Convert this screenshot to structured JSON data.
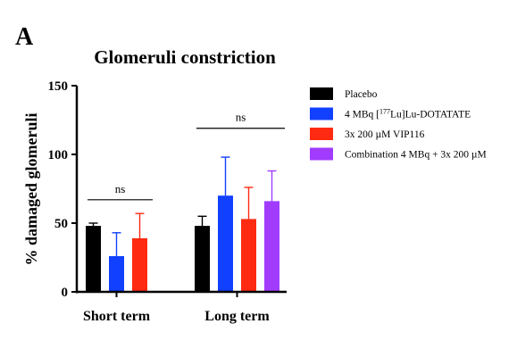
{
  "panel_label": "A",
  "chart_data": {
    "type": "bar",
    "title": "Glomeruli constriction",
    "xlabel": "",
    "ylabel": "% damaged glomeruli",
    "ylim": [
      0,
      150
    ],
    "yticks": [
      0,
      50,
      100,
      150
    ],
    "categories": [
      "Short term",
      "Long term"
    ],
    "series": [
      {
        "name": "Placebo",
        "color": "#000000",
        "values": [
          48,
          48
        ],
        "err": [
          2,
          7
        ]
      },
      {
        "name": "4 MBq [177Lu]Lu-DOTATATE",
        "name_prefix": "4 MBq [",
        "name_sup": "177",
        "name_suffix": "Lu]Lu-DOTATATE",
        "color": "#1140ff",
        "values": [
          26,
          70
        ],
        "err": [
          17,
          28
        ]
      },
      {
        "name": "3x 200 µM VIP116",
        "color": "#ff2a12",
        "values": [
          39,
          53
        ],
        "err": [
          18,
          23
        ]
      },
      {
        "name": "Combination 4 MBq + 3x 200 µM",
        "color": "#a13cff",
        "values": [
          null,
          66
        ],
        "err": [
          null,
          22
        ]
      }
    ],
    "annotations": [
      {
        "text": "ns",
        "group": 0,
        "from_series": 0,
        "to_series": 2,
        "y": 67
      },
      {
        "text": "ns",
        "group": 1,
        "from_series": 0,
        "to_series": 3,
        "y": 119
      }
    ],
    "legend_position": "right",
    "grid": false
  }
}
